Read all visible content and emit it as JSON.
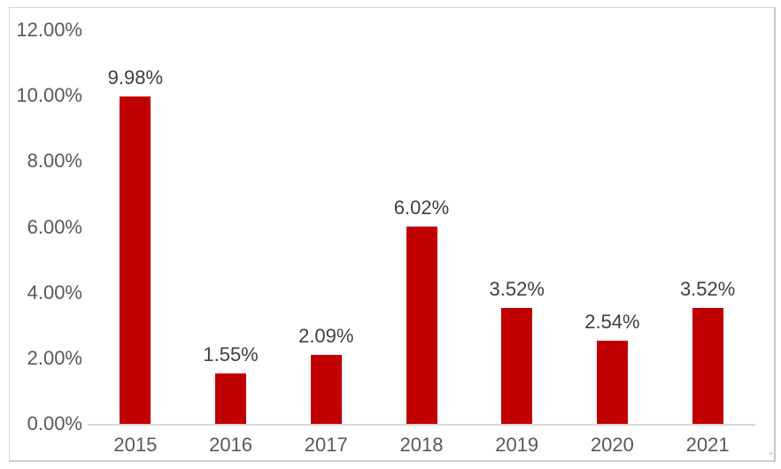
{
  "chart_data": {
    "type": "bar",
    "title": "",
    "xlabel": "",
    "ylabel": "",
    "categories": [
      "2015",
      "2016",
      "2017",
      "2018",
      "2019",
      "2020",
      "2021"
    ],
    "values": [
      9.98,
      1.55,
      2.09,
      6.02,
      3.52,
      2.54,
      3.52
    ],
    "data_labels": [
      "9.98%",
      "1.55%",
      "2.09%",
      "6.02%",
      "3.52%",
      "2.54%",
      "3.52%"
    ],
    "y_ticks": [
      {
        "label": "12.00%",
        "value": 12
      },
      {
        "label": "10.00%",
        "value": 10
      },
      {
        "label": "8.00%",
        "value": 8
      },
      {
        "label": "6.00%",
        "value": 6
      },
      {
        "label": "4.00%",
        "value": 4
      },
      {
        "label": "2.00%",
        "value": 2
      },
      {
        "label": "0.00%",
        "value": 0
      }
    ],
    "ylim": [
      0,
      12
    ],
    "grid": false,
    "legend": false,
    "colors": {
      "bar": "#c00000",
      "axis_tick_label": "#595959",
      "data_label": "#3f3f3f",
      "x_axis_label": "#595959",
      "axis_line": "#d9d9d9",
      "frame_border": "#d6d6d6",
      "background": "#ffffff"
    }
  },
  "decorations": {
    "corner_mark": "+"
  }
}
